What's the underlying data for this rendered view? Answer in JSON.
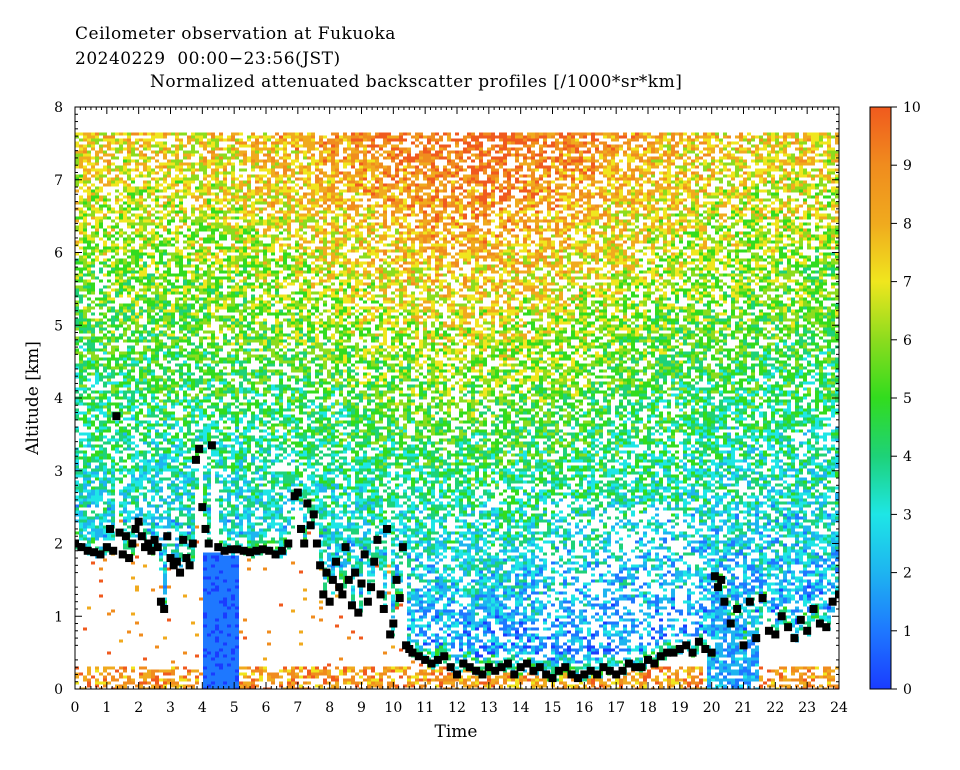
{
  "titles": {
    "line1": "Ceilometer observation at Fukuoka",
    "line2": "20240229  00:00−23:56(JST)",
    "line3": "Normalized attenuated backscatter profiles [/1000*sr*km]"
  },
  "chart_data": {
    "type": "heatmap",
    "xlabel": "Time",
    "ylabel": "Altitude [km]",
    "xlim": [
      0,
      24
    ],
    "ylim": [
      0,
      8
    ],
    "x_ticks": [
      "0",
      "1",
      "2",
      "3",
      "4",
      "5",
      "6",
      "7",
      "8",
      "9",
      "10",
      "11",
      "12",
      "13",
      "14",
      "15",
      "16",
      "17",
      "18",
      "19",
      "20",
      "21",
      "22",
      "23",
      "24"
    ],
    "y_ticks": [
      "0",
      "1",
      "2",
      "3",
      "4",
      "5",
      "6",
      "7",
      "8"
    ],
    "data_top_km": 7.65,
    "colorbar": {
      "min": 0,
      "max": 10,
      "ticks": [
        "0",
        "1",
        "2",
        "3",
        "4",
        "5",
        "6",
        "7",
        "8",
        "9",
        "10"
      ],
      "colors": [
        "#1a3cff",
        "#1e78ff",
        "#1eb4f0",
        "#1ee6e6",
        "#1ed278",
        "#32dc1e",
        "#8cdc1e",
        "#f0e61e",
        "#f0aa1e",
        "#f08c1e",
        "#f05a1e"
      ]
    },
    "cloud_base_series": {
      "name": "",
      "color": "#000000",
      "x": [
        0.0,
        0.2,
        0.4,
        0.6,
        0.8,
        1.0,
        1.1,
        1.2,
        1.3,
        1.4,
        1.5,
        1.6,
        1.7,
        1.8,
        1.9,
        2.0,
        2.1,
        2.2,
        2.3,
        2.4,
        2.5,
        2.6,
        2.7,
        2.8,
        2.9,
        3.0,
        3.1,
        3.2,
        3.3,
        3.4,
        3.5,
        3.6,
        3.7,
        3.8,
        3.9,
        4.0,
        4.1,
        4.2,
        4.3,
        4.5,
        4.7,
        4.9,
        5.1,
        5.3,
        5.5,
        5.7,
        5.9,
        6.1,
        6.3,
        6.5,
        6.7,
        6.9,
        7.0,
        7.1,
        7.2,
        7.3,
        7.4,
        7.5,
        7.6,
        7.7,
        7.8,
        7.9,
        8.0,
        8.1,
        8.2,
        8.3,
        8.4,
        8.5,
        8.6,
        8.7,
        8.8,
        8.9,
        9.0,
        9.1,
        9.2,
        9.3,
        9.4,
        9.5,
        9.6,
        9.7,
        9.8,
        9.9,
        10.0,
        10.1,
        10.2,
        10.3,
        10.4,
        10.5,
        10.6,
        10.8,
        11.0,
        11.2,
        11.4,
        11.6,
        11.8,
        12.0,
        12.2,
        12.4,
        12.6,
        12.8,
        13.0,
        13.2,
        13.4,
        13.6,
        13.8,
        14.0,
        14.2,
        14.4,
        14.6,
        14.8,
        15.0,
        15.2,
        15.4,
        15.6,
        15.8,
        16.0,
        16.2,
        16.4,
        16.6,
        16.8,
        17.0,
        17.2,
        17.4,
        17.6,
        17.8,
        18.0,
        18.2,
        18.4,
        18.6,
        18.8,
        19.0,
        19.2,
        19.4,
        19.6,
        19.8,
        20.0,
        20.1,
        20.2,
        20.3,
        20.4,
        20.6,
        20.8,
        21.0,
        21.2,
        21.4,
        21.6,
        21.8,
        22.0,
        22.2,
        22.4,
        22.6,
        22.8,
        23.0,
        23.2,
        23.4,
        23.6,
        23.8,
        24.0
      ],
      "y": [
        2.0,
        1.95,
        1.9,
        1.88,
        1.85,
        1.95,
        2.2,
        1.9,
        3.75,
        2.15,
        1.85,
        2.1,
        1.8,
        2.0,
        2.2,
        2.3,
        2.1,
        1.95,
        2.0,
        1.9,
        2.05,
        1.95,
        1.2,
        1.1,
        2.1,
        1.8,
        1.7,
        1.75,
        1.6,
        2.05,
        1.8,
        1.7,
        2.0,
        3.15,
        3.3,
        2.5,
        2.2,
        2.0,
        3.35,
        1.95,
        1.9,
        1.92,
        1.92,
        1.9,
        1.88,
        1.9,
        1.92,
        1.9,
        1.85,
        1.9,
        2.0,
        2.65,
        2.7,
        2.2,
        2.0,
        2.55,
        2.25,
        2.4,
        2.0,
        1.7,
        1.3,
        1.6,
        1.2,
        1.5,
        1.75,
        1.4,
        1.3,
        1.95,
        1.5,
        1.15,
        1.6,
        1.05,
        1.45,
        1.85,
        1.2,
        1.4,
        1.75,
        2.05,
        1.3,
        1.1,
        2.2,
        0.75,
        0.9,
        1.5,
        1.25,
        1.95,
        0.6,
        0.55,
        0.5,
        0.45,
        0.4,
        0.35,
        0.4,
        0.45,
        0.3,
        0.2,
        0.35,
        0.3,
        0.25,
        0.2,
        0.3,
        0.25,
        0.3,
        0.35,
        0.2,
        0.3,
        0.35,
        0.25,
        0.3,
        0.2,
        0.15,
        0.25,
        0.3,
        0.2,
        0.15,
        0.2,
        0.25,
        0.2,
        0.3,
        0.25,
        0.2,
        0.25,
        0.35,
        0.3,
        0.3,
        0.4,
        0.35,
        0.45,
        0.5,
        0.5,
        0.55,
        0.6,
        0.5,
        0.65,
        0.55,
        0.5,
        1.55,
        1.4,
        1.5,
        1.2,
        0.9,
        1.1,
        0.6,
        1.2,
        0.7,
        1.25,
        0.8,
        0.75,
        1.0,
        0.85,
        0.7,
        0.95,
        0.8,
        1.1,
        0.9,
        0.85,
        1.2,
        1.3
      ]
    }
  }
}
